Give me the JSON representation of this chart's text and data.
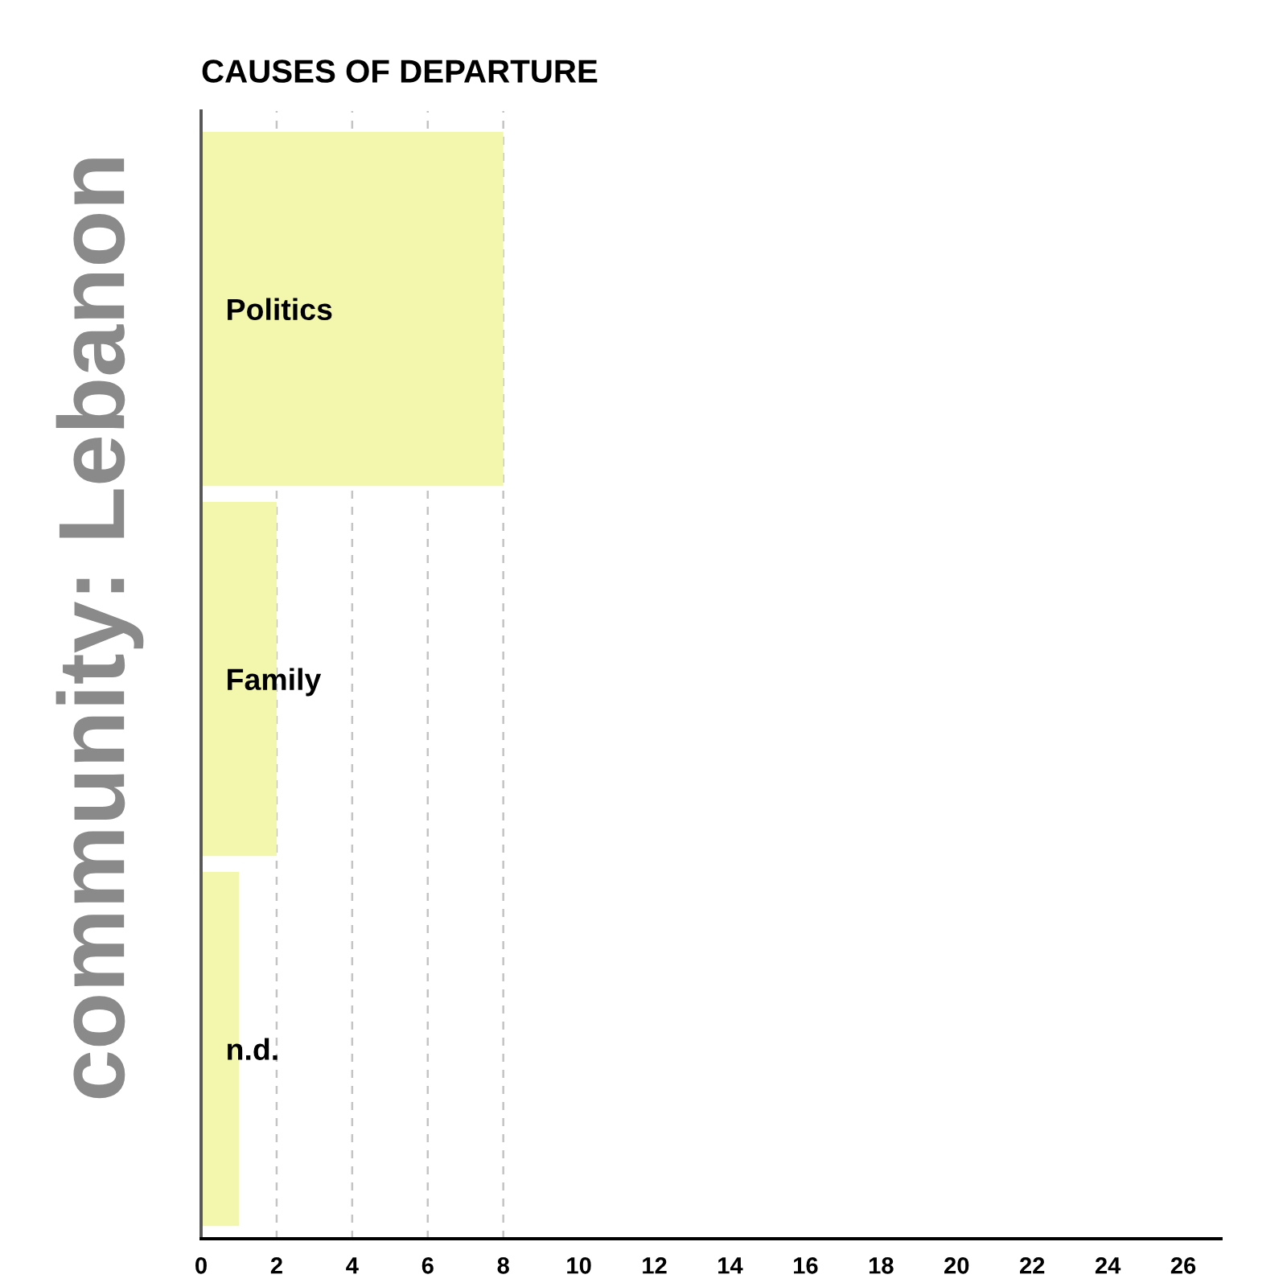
{
  "chart_data": {
    "type": "bar",
    "orientation": "horizontal",
    "title": "CAUSES OF DEPARTURE",
    "ylabel": "community: Lebanon",
    "categories": [
      "Politics",
      "Family",
      "n.d."
    ],
    "values": [
      8,
      2,
      1
    ],
    "color": "#f3f7ae",
    "xlim": [
      0,
      27
    ],
    "xticks": [
      0,
      2,
      4,
      6,
      8,
      10,
      12,
      14,
      16,
      18,
      20,
      22,
      24,
      26
    ],
    "ref_lines": [
      {
        "axis": "x",
        "value": 2,
        "color": "#c4c4c4",
        "line_style": "dashed"
      },
      {
        "axis": "x",
        "value": 4,
        "color": "#c4c4c4",
        "line_style": "dashed"
      },
      {
        "axis": "x",
        "value": 6,
        "color": "#c4c4c4",
        "line_style": "dashed"
      },
      {
        "axis": "x",
        "value": 8,
        "color": "#c4c4c4",
        "line_style": "dashed"
      }
    ]
  }
}
